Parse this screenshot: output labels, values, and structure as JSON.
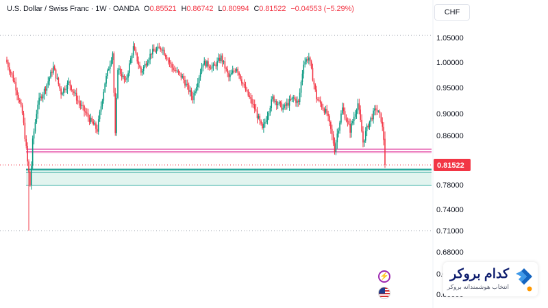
{
  "legend": {
    "symbol": "U.S. Dollar / Swiss Franc · 1W · OANDA",
    "open_label": "O",
    "open": "0.85521",
    "high_label": "H",
    "high": "0.86742",
    "low_label": "L",
    "low": "0.80994",
    "close_label": "C",
    "close": "0.81522",
    "change": "−0.04553 (−5.29%)"
  },
  "currency": "CHF",
  "brand": {
    "name": "کدام بروکر",
    "tagline": "انتخاب هوشمندانه بروکر",
    "logo_icon": "chevron-logo-icon"
  },
  "badges": {
    "first": "lightning-icon",
    "second": "us-flag-icon"
  },
  "colors": {
    "up": "#089981",
    "down": "#f23645",
    "resistance": "#e040a0",
    "support": "#26a69a",
    "support_fill": "#d8f0ea"
  },
  "chart_data": {
    "type": "candlestick",
    "instrument": "U.S. Dollar / Swiss Franc",
    "timeframe": "1W",
    "y_ticks": [
      1.05,
      1.0,
      0.95,
      0.9,
      0.86,
      0.82,
      0.78,
      0.74,
      0.71,
      0.68,
      0.64,
      0.6
    ],
    "y_tick_labels": [
      "1.05000",
      "1.00000",
      "0.95000",
      "0.90000",
      "0.86000",
      "0.82000",
      "0.78000",
      "0.74000",
      "0.71000",
      "0.68000",
      "0.64000",
      "0.60000"
    ],
    "last_price": 0.81522,
    "last_price_label": "0.81522",
    "horizontal_lines": [
      1.055,
      0.71
    ],
    "resistance_zone": [
      0.8355,
      0.8395
    ],
    "support_zone": [
      0.7795,
      0.807
    ],
    "close_path": [
      {
        "w": 0,
        "v": 1.0
      },
      {
        "w": 6,
        "v": 0.96
      },
      {
        "w": 12,
        "v": 0.9
      },
      {
        "w": 16,
        "v": 0.82
      },
      {
        "w": 18,
        "v": 0.78
      },
      {
        "w": 20,
        "v": 0.85
      },
      {
        "w": 24,
        "v": 0.92
      },
      {
        "w": 30,
        "v": 0.95
      },
      {
        "w": 36,
        "v": 0.99
      },
      {
        "w": 42,
        "v": 0.94
      },
      {
        "w": 48,
        "v": 0.96
      },
      {
        "w": 56,
        "v": 0.92
      },
      {
        "w": 64,
        "v": 0.89
      },
      {
        "w": 70,
        "v": 0.87
      },
      {
        "w": 76,
        "v": 0.96
      },
      {
        "w": 82,
        "v": 1.02
      },
      {
        "w": 84,
        "v": 0.86
      },
      {
        "w": 86,
        "v": 0.99
      },
      {
        "w": 92,
        "v": 0.96
      },
      {
        "w": 98,
        "v": 1.03
      },
      {
        "w": 104,
        "v": 0.98
      },
      {
        "w": 112,
        "v": 1.02
      },
      {
        "w": 120,
        "v": 1.03
      },
      {
        "w": 128,
        "v": 0.99
      },
      {
        "w": 136,
        "v": 0.97
      },
      {
        "w": 144,
        "v": 0.93
      },
      {
        "w": 152,
        "v": 1.0
      },
      {
        "w": 160,
        "v": 0.99
      },
      {
        "w": 166,
        "v": 1.01
      },
      {
        "w": 172,
        "v": 0.97
      },
      {
        "w": 178,
        "v": 0.99
      },
      {
        "w": 184,
        "v": 0.95
      },
      {
        "w": 192,
        "v": 0.91
      },
      {
        "w": 198,
        "v": 0.87
      },
      {
        "w": 206,
        "v": 0.93
      },
      {
        "w": 214,
        "v": 0.91
      },
      {
        "w": 222,
        "v": 0.93
      },
      {
        "w": 226,
        "v": 0.92
      },
      {
        "w": 230,
        "v": 1.0
      },
      {
        "w": 234,
        "v": 1.01
      },
      {
        "w": 240,
        "v": 0.93
      },
      {
        "w": 248,
        "v": 0.9
      },
      {
        "w": 254,
        "v": 0.84
      },
      {
        "w": 260,
        "v": 0.91
      },
      {
        "w": 266,
        "v": 0.87
      },
      {
        "w": 272,
        "v": 0.92
      },
      {
        "w": 276,
        "v": 0.85
      },
      {
        "w": 280,
        "v": 0.88
      },
      {
        "w": 286,
        "v": 0.91
      },
      {
        "w": 290,
        "v": 0.89
      },
      {
        "w": 292,
        "v": 0.855
      },
      {
        "w": 293,
        "v": 0.815
      }
    ]
  }
}
